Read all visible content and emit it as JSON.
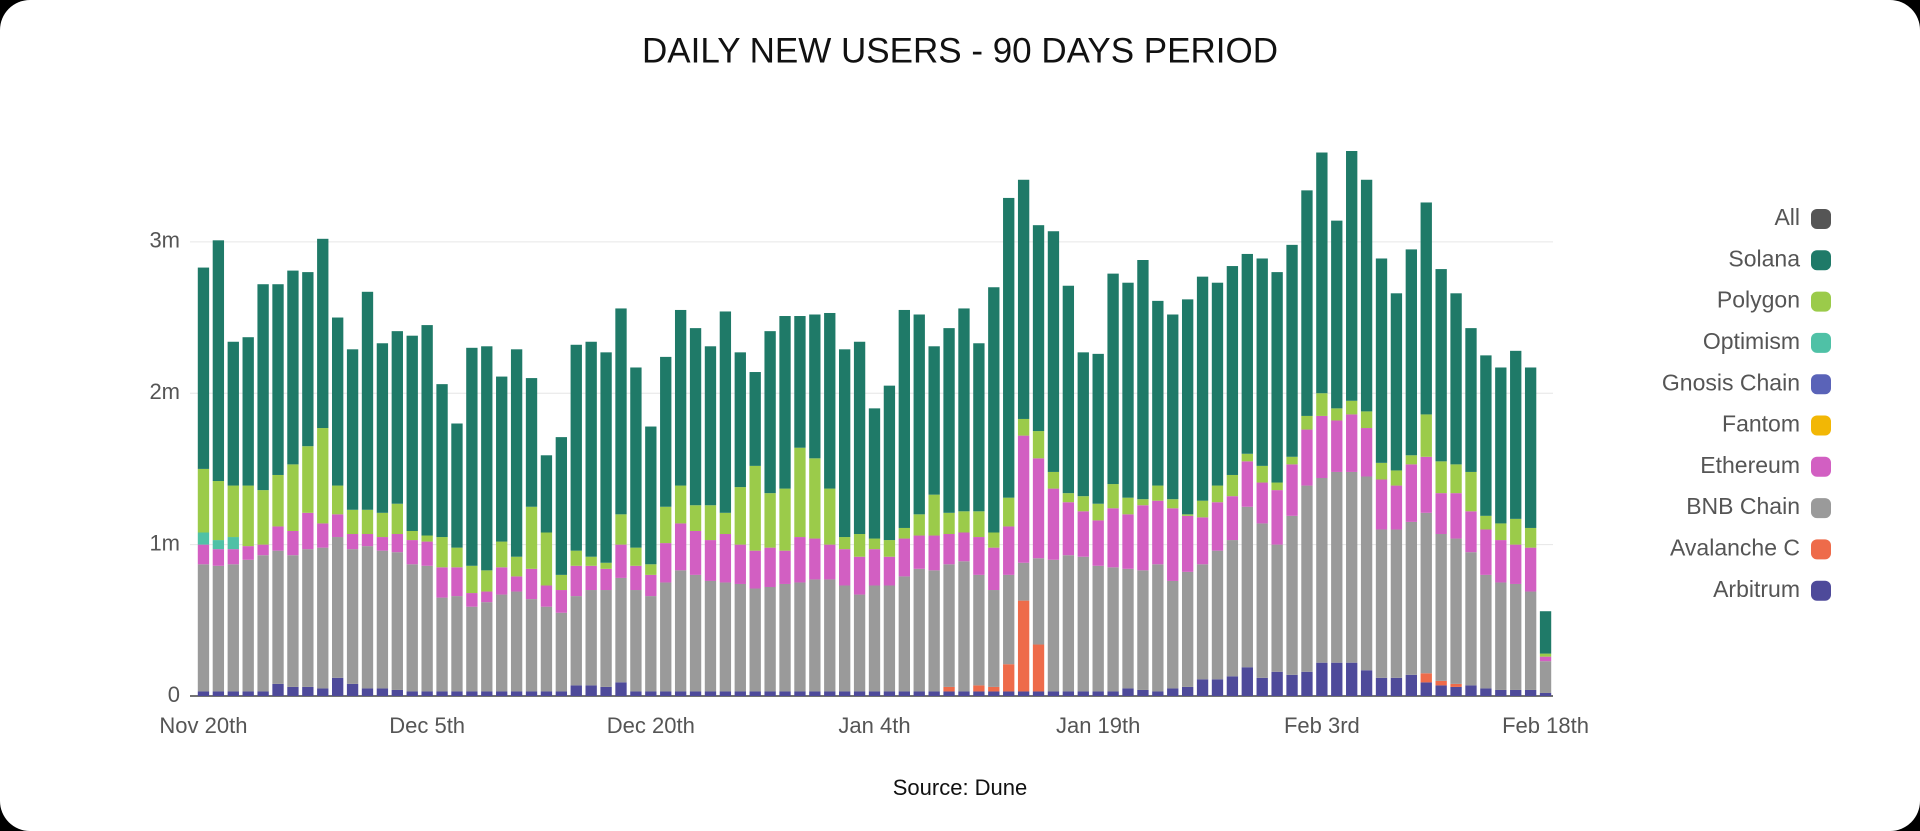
{
  "chart_data": {
    "type": "stacked-bar",
    "title": "DAILY NEW USERS - 90 DAYS PERIOD",
    "source": "Source: Dune",
    "categories": [
      "Nov 20th",
      null,
      null,
      null,
      null,
      null,
      null,
      null,
      null,
      null,
      null,
      null,
      null,
      null,
      null,
      "Dec 5th",
      null,
      null,
      null,
      null,
      null,
      null,
      null,
      null,
      null,
      null,
      null,
      null,
      null,
      null,
      "Dec 20th",
      null,
      null,
      null,
      null,
      null,
      null,
      null,
      null,
      null,
      null,
      null,
      null,
      null,
      null,
      "Jan 4th",
      null,
      null,
      null,
      null,
      null,
      null,
      null,
      null,
      null,
      null,
      null,
      null,
      null,
      null,
      "Jan 19th",
      null,
      null,
      null,
      null,
      null,
      null,
      null,
      null,
      null,
      null,
      null,
      null,
      null,
      null,
      "Feb 3rd",
      null,
      null,
      null,
      null,
      null,
      null,
      null,
      null,
      null,
      null,
      null,
      null,
      null,
      null,
      "Feb 18th"
    ],
    "ylim": [
      0,
      3.6
    ],
    "yticks": [
      0,
      {
        "value": 1,
        "label": "1m"
      },
      {
        "value": 2,
        "label": "2m"
      },
      {
        "value": 3,
        "label": "3m"
      }
    ],
    "grid": true,
    "legend": "right",
    "series": [
      {
        "name": "All",
        "color": "#555555"
      },
      {
        "name": "Solana",
        "color": "#1f7a68",
        "values": [
          1.33,
          1.59,
          0.95,
          0.98,
          1.36,
          1.26,
          1.28,
          1.15,
          1.25,
          1.11,
          1.06,
          1.44,
          1.12,
          1.14,
          1.29,
          1.39,
          1.01,
          0.82,
          1.44,
          1.48,
          1.09,
          1.37,
          0.85,
          0.51,
          0.91,
          1.36,
          1.42,
          1.39,
          1.36,
          1.19,
          0.91,
          0.99,
          1.16,
          1.17,
          1.05,
          1.33,
          0.89,
          0.62,
          1.07,
          1.14,
          0.87,
          0.95,
          1.16,
          1.24,
          1.27,
          0.86,
          1.02,
          1.44,
          1.32,
          0.98,
          1.22,
          1.34,
          1.11,
          1.62,
          1.98,
          1.58,
          1.36,
          1.59,
          1.37,
          0.95,
          0.99,
          1.39,
          1.42,
          1.58,
          1.22,
          1.22,
          1.42,
          1.48,
          1.34,
          1.38,
          1.32,
          1.37,
          1.39,
          1.4,
          1.49,
          1.59,
          1.24,
          1.65,
          1.53,
          1.35,
          1.17,
          1.36,
          1.4,
          1.27,
          1.13,
          0.95,
          1.06,
          1.03,
          1.11,
          1.06,
          0.28
        ]
      },
      {
        "name": "Polygon",
        "color": "#9bcb4a",
        "values": [
          0.42,
          0.39,
          0.34,
          0.4,
          0.36,
          0.34,
          0.44,
          0.44,
          0.63,
          0.19,
          0.16,
          0.16,
          0.16,
          0.2,
          0.06,
          0.04,
          0.2,
          0.13,
          0.18,
          0.14,
          0.17,
          0.13,
          0.41,
          0.35,
          0.1,
          0.1,
          0.06,
          0.04,
          0.2,
          0.12,
          0.07,
          0.24,
          0.25,
          0.17,
          0.23,
          0.14,
          0.38,
          0.56,
          0.36,
          0.41,
          0.59,
          0.53,
          0.37,
          0.08,
          0.15,
          0.07,
          0.11,
          0.07,
          0.14,
          0.27,
          0.14,
          0.14,
          0.17,
          0.1,
          0.19,
          0.11,
          0.18,
          0.11,
          0.06,
          0.1,
          0.11,
          0.16,
          0.11,
          0.04,
          0.1,
          0.06,
          0.01,
          0.11,
          0.11,
          0.14,
          0.05,
          0.11,
          0.05,
          0.05,
          0.09,
          0.15,
          0.08,
          0.09,
          0.11,
          0.11,
          0.1,
          0.06,
          0.28,
          0.21,
          0.19,
          0.26,
          0.09,
          0.11,
          0.17,
          0.13,
          0.02
        ]
      },
      {
        "name": "Optimism",
        "color": "#4fc1a6",
        "values": [
          0.08,
          0.06,
          0.08,
          0,
          0,
          0,
          0,
          0,
          0,
          0,
          0,
          0,
          0,
          0,
          0,
          0,
          0,
          0,
          0,
          0,
          0,
          0,
          0,
          0,
          0,
          0,
          0,
          0,
          0,
          0,
          0,
          0,
          0,
          0,
          0,
          0,
          0,
          0,
          0,
          0,
          0,
          0,
          0,
          0,
          0,
          0,
          0,
          0,
          0,
          0,
          0,
          0,
          0,
          0,
          0,
          0,
          0,
          0,
          0,
          0,
          0,
          0,
          0,
          0,
          0,
          0,
          0,
          0,
          0,
          0,
          0,
          0,
          0,
          0,
          0,
          0,
          0,
          0,
          0,
          0,
          0,
          0,
          0,
          0,
          0,
          0,
          0,
          0,
          0,
          0,
          0
        ]
      },
      {
        "name": "Gnosis Chain",
        "color": "#5a63b8"
      },
      {
        "name": "Fantom",
        "color": "#f2b705"
      },
      {
        "name": "Ethereum",
        "color": "#d25fc2",
        "values": [
          0.13,
          0.11,
          0.1,
          0.09,
          0.07,
          0.16,
          0.16,
          0.24,
          0.16,
          0.15,
          0.1,
          0.08,
          0.09,
          0.12,
          0.16,
          0.16,
          0.2,
          0.19,
          0.09,
          0.07,
          0.18,
          0.1,
          0.2,
          0.14,
          0.15,
          0.2,
          0.16,
          0.14,
          0.22,
          0.16,
          0.14,
          0.26,
          0.31,
          0.29,
          0.27,
          0.32,
          0.26,
          0.25,
          0.26,
          0.22,
          0.3,
          0.27,
          0.23,
          0.24,
          0.25,
          0.24,
          0.19,
          0.25,
          0.22,
          0.23,
          0.2,
          0.19,
          0.25,
          0.28,
          0.32,
          0.84,
          0.66,
          0.47,
          0.35,
          0.3,
          0.3,
          0.39,
          0.36,
          0.43,
          0.42,
          0.48,
          0.37,
          0.31,
          0.32,
          0.29,
          0.3,
          0.27,
          0.36,
          0.34,
          0.37,
          0.41,
          0.34,
          0.38,
          0.32,
          0.33,
          0.29,
          0.38,
          0.37,
          0.27,
          0.3,
          0.27,
          0.3,
          0.28,
          0.26,
          0.29,
          0.03
        ]
      },
      {
        "name": "BNB Chain",
        "color": "#9a9a9a",
        "values": [
          0.84,
          0.83,
          0.84,
          0.87,
          0.9,
          0.88,
          0.87,
          0.91,
          0.93,
          0.93,
          0.89,
          0.94,
          0.91,
          0.91,
          0.84,
          0.83,
          0.62,
          0.63,
          0.56,
          0.59,
          0.64,
          0.66,
          0.61,
          0.56,
          0.52,
          0.59,
          0.63,
          0.64,
          0.69,
          0.67,
          0.63,
          0.72,
          0.8,
          0.77,
          0.73,
          0.72,
          0.71,
          0.68,
          0.69,
          0.71,
          0.72,
          0.74,
          0.74,
          0.7,
          0.64,
          0.7,
          0.7,
          0.76,
          0.81,
          0.8,
          0.81,
          0.86,
          0.73,
          0.64,
          0.59,
          0.25,
          0.57,
          0.87,
          0.9,
          0.89,
          0.83,
          0.82,
          0.79,
          0.79,
          0.84,
          0.71,
          0.76,
          0.76,
          0.85,
          0.9,
          1.06,
          1.02,
          0.84,
          1.05,
          1.23,
          1.22,
          1.26,
          1.26,
          1.28,
          0.98,
          0.98,
          1.01,
          1.06,
          0.97,
          0.96,
          0.88,
          0.75,
          0.71,
          0.7,
          0.65,
          0.21
        ]
      },
      {
        "name": "Avalanche C",
        "color": "#ee6b4a",
        "values": [
          0,
          0,
          0,
          0,
          0,
          0,
          0,
          0,
          0,
          0,
          0,
          0,
          0,
          0,
          0,
          0,
          0,
          0,
          0,
          0,
          0,
          0,
          0,
          0,
          0,
          0,
          0,
          0,
          0,
          0,
          0,
          0,
          0,
          0,
          0,
          0,
          0,
          0,
          0,
          0,
          0,
          0,
          0,
          0,
          0,
          0,
          0,
          0,
          0,
          0,
          0.03,
          0,
          0.04,
          0.03,
          0.18,
          0.6,
          0.31,
          0,
          0,
          0,
          0,
          0,
          0,
          0,
          0,
          0,
          0,
          0,
          0,
          0,
          0,
          0,
          0,
          0,
          0,
          0,
          0,
          0,
          0,
          0,
          0,
          0,
          0.06,
          0.03,
          0.02,
          0,
          0,
          0,
          0,
          0,
          0
        ]
      },
      {
        "name": "Arbitrum",
        "color": "#4e4a9a",
        "values": [
          0.03,
          0.03,
          0.03,
          0.03,
          0.03,
          0.08,
          0.06,
          0.06,
          0.05,
          0.12,
          0.08,
          0.05,
          0.05,
          0.04,
          0.03,
          0.03,
          0.03,
          0.03,
          0.03,
          0.03,
          0.03,
          0.03,
          0.03,
          0.03,
          0.03,
          0.07,
          0.07,
          0.06,
          0.09,
          0.03,
          0.03,
          0.03,
          0.03,
          0.03,
          0.03,
          0.03,
          0.03,
          0.03,
          0.03,
          0.03,
          0.03,
          0.03,
          0.03,
          0.03,
          0.03,
          0.03,
          0.03,
          0.03,
          0.03,
          0.03,
          0.03,
          0.03,
          0.03,
          0.03,
          0.03,
          0.03,
          0.03,
          0.03,
          0.03,
          0.03,
          0.03,
          0.03,
          0.05,
          0.04,
          0.03,
          0.05,
          0.06,
          0.11,
          0.11,
          0.13,
          0.19,
          0.12,
          0.16,
          0.14,
          0.16,
          0.22,
          0.22,
          0.22,
          0.17,
          0.12,
          0.12,
          0.14,
          0.09,
          0.07,
          0.06,
          0.07,
          0.05,
          0.04,
          0.04,
          0.04,
          0.02
        ]
      }
    ]
  }
}
